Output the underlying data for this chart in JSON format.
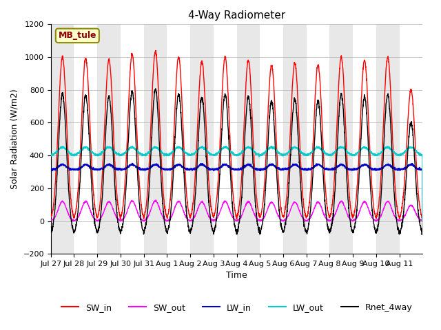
{
  "title": "4-Way Radiometer",
  "xlabel": "Time",
  "ylabel": "Solar Radiation (W/m2)",
  "ylim": [
    -200,
    1200
  ],
  "yticks": [
    -200,
    0,
    200,
    400,
    600,
    800,
    1000,
    1200
  ],
  "station_label": "MB_tule",
  "colors": {
    "SW_in": "#ff0000",
    "SW_out": "#ff00ff",
    "LW_in": "#0000cc",
    "LW_out": "#00cccc",
    "Rnet_4way": "#000000"
  },
  "legend_labels": [
    "SW_in",
    "SW_out",
    "LW_in",
    "LW_out",
    "Rnet_4way"
  ],
  "x_tick_labels": [
    "Jul 27",
    "Jul 28",
    "Jul 29",
    "Jul 30",
    "Jul 31",
    "Aug 1",
    "Aug 2",
    "Aug 3",
    "Aug 4",
    "Aug 5",
    "Aug 6",
    "Aug 7",
    "Aug 8",
    "Aug 9",
    "Aug 10",
    "Aug 11"
  ],
  "n_days": 16,
  "background_color": "#ffffff",
  "band_color": "#e8e8e8"
}
